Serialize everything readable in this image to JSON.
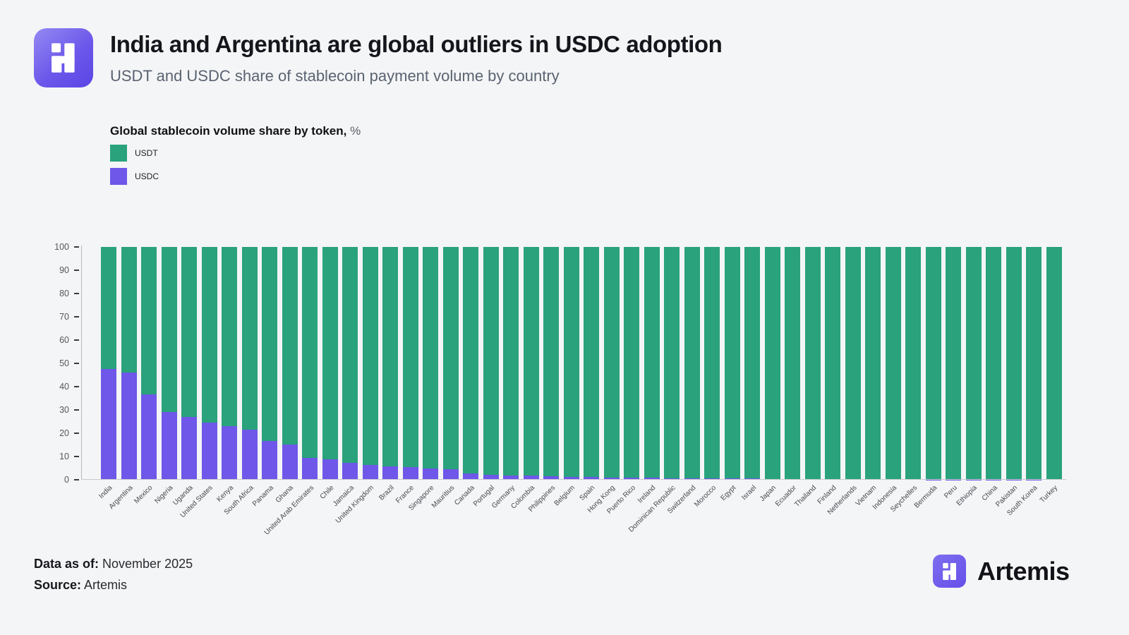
{
  "header": {
    "title": "India and Argentina are global outliers in USDC adoption",
    "subtitle": "USDT and USDC share of stablecoin payment volume by country"
  },
  "legend": {
    "title": "Global stablecoin volume share by token,",
    "unit": "%",
    "items": [
      {
        "label": "USDT",
        "color": "#2aa27c"
      },
      {
        "label": "USDC",
        "color": "#6e57e9"
      }
    ]
  },
  "chart_data": {
    "type": "bar",
    "stacked": true,
    "title": "Global stablecoin volume share by token, %",
    "xlabel": "",
    "ylabel": "",
    "ylim": [
      0,
      100
    ],
    "yticks": [
      0,
      10,
      20,
      30,
      40,
      50,
      60,
      70,
      80,
      90,
      100
    ],
    "grid": false,
    "legend_position": "top-left",
    "categories": [
      "India",
      "Argentina",
      "Mexico",
      "Nigeria",
      "Uganda",
      "United States",
      "Kenya",
      "South Africa",
      "Panama",
      "Ghana",
      "United Arab Emirates",
      "Chile",
      "Jamaica",
      "United Kingdom",
      "Brazil",
      "France",
      "Singapore",
      "Mauritius",
      "Canada",
      "Portugal",
      "Germany",
      "Colombia",
      "Philippines",
      "Belgium",
      "Spain",
      "Hong Kong",
      "Puerto Rico",
      "Ireland",
      "Dominican Republic",
      "Switzerland",
      "Morocco",
      "Egypt",
      "Israel",
      "Japan",
      "Ecuador",
      "Thailand",
      "Finland",
      "Netherlands",
      "Vietnam",
      "Indonesia",
      "Seychelles",
      "Bermuda",
      "Peru",
      "Ethiopia",
      "China",
      "Pakistan",
      "South Korea",
      "Turkey"
    ],
    "series": [
      {
        "name": "USDT",
        "color": "#2aa27c",
        "values": [
          52.5,
          53.8,
          63.2,
          71.0,
          73.1,
          75.4,
          76.9,
          78.5,
          83.4,
          84.9,
          90.5,
          91.1,
          92.6,
          93.7,
          94.2,
          94.5,
          95.0,
          95.6,
          97.2,
          97.8,
          98.1,
          98.3,
          98.5,
          98.7,
          98.8,
          99.0,
          99.1,
          99.2,
          99.3,
          99.4,
          99.4,
          99.5,
          99.5,
          99.6,
          99.6,
          99.7,
          99.7,
          99.7,
          99.8,
          99.8,
          99.8,
          99.9,
          99.9,
          99.9,
          99.9,
          99.9,
          99.9,
          100.0
        ]
      },
      {
        "name": "USDC",
        "color": "#6e57e9",
        "values": [
          47.5,
          46.2,
          36.8,
          29.0,
          26.9,
          24.6,
          23.1,
          21.5,
          16.6,
          15.1,
          9.5,
          8.9,
          7.4,
          6.3,
          5.8,
          5.5,
          5.0,
          4.4,
          2.8,
          2.2,
          1.9,
          1.7,
          1.5,
          1.3,
          1.2,
          1.0,
          0.9,
          0.8,
          0.7,
          0.6,
          0.6,
          0.5,
          0.5,
          0.4,
          0.4,
          0.3,
          0.3,
          0.3,
          0.2,
          0.2,
          0.2,
          0.1,
          0.1,
          0.1,
          0.1,
          0.1,
          0.1,
          0.0
        ]
      }
    ]
  },
  "footer": {
    "data_as_of_label": "Data as of:",
    "data_as_of_value": " November 2025",
    "source_label": "Source:",
    "source_value": " Artemis",
    "brand_name": "Artemis"
  },
  "colors": {
    "usdt_green": "#2aa27c",
    "usdc_purple": "#6e57e9",
    "logo_purple": "#6c58ea",
    "background": "#f4f5f6"
  }
}
